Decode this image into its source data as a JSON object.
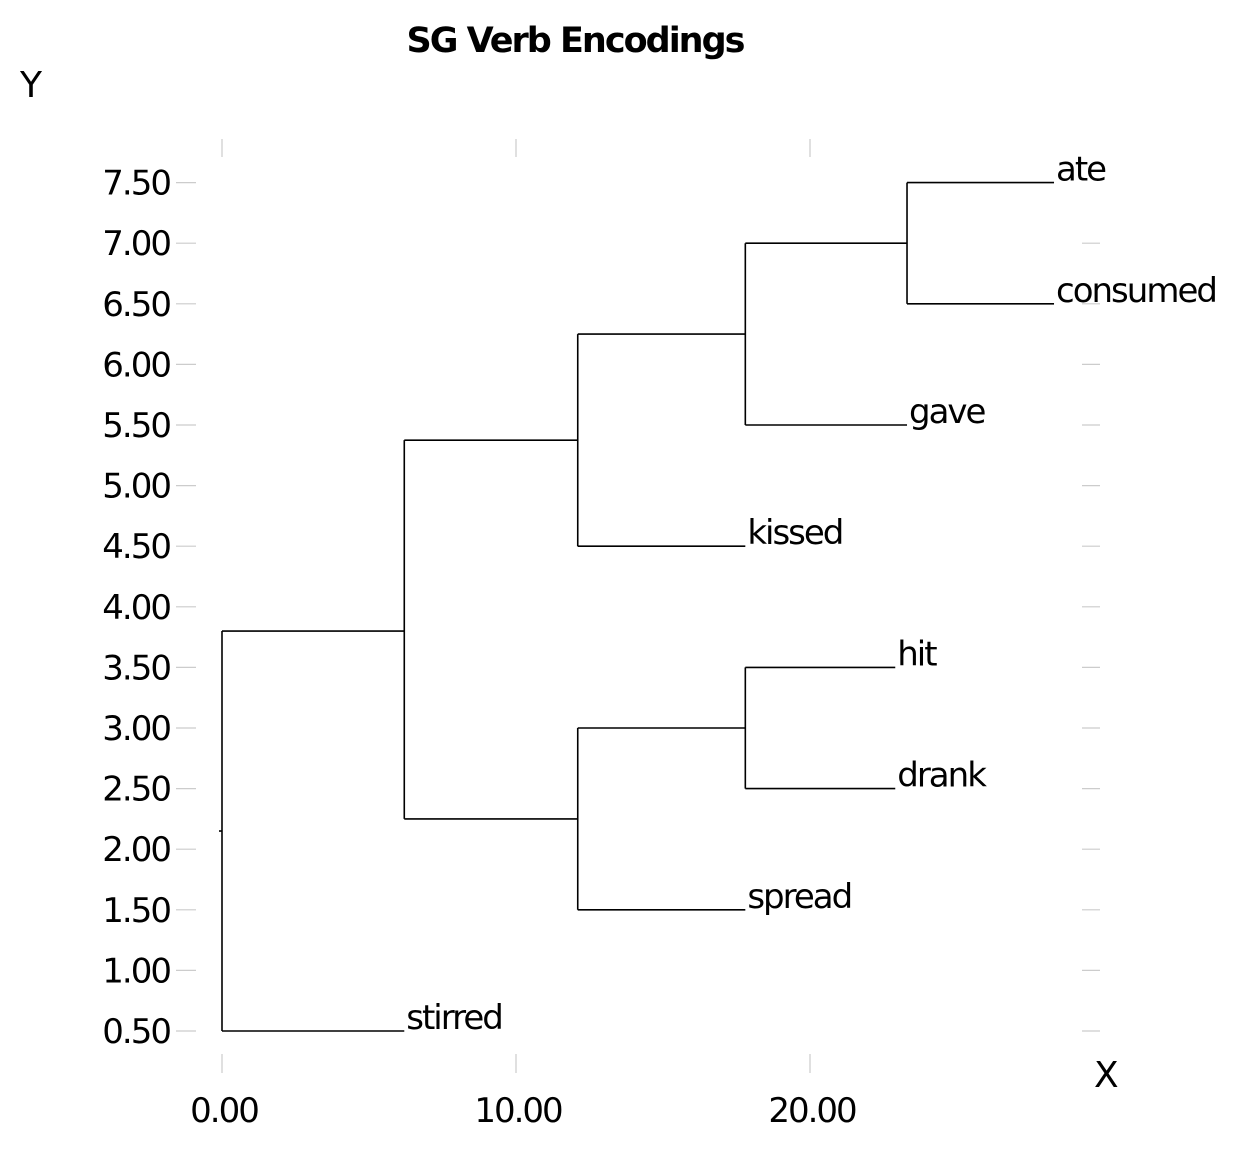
{
  "chart_data": {
    "type": "dendrogram",
    "title": "SG Verb Encodings",
    "xlabel": "X",
    "ylabel": "Y",
    "xlim": [
      0,
      29
    ],
    "ylim": [
      0.5,
      7.5
    ],
    "x_ticks": [
      {
        "value": 0,
        "label": "0.00"
      },
      {
        "value": 10,
        "label": "10.00"
      },
      {
        "value": 20,
        "label": "20.00"
      }
    ],
    "y_ticks": [
      {
        "value": 7.5,
        "label": "7.50"
      },
      {
        "value": 7.0,
        "label": "7.00"
      },
      {
        "value": 6.5,
        "label": "6.50"
      },
      {
        "value": 6.0,
        "label": "6.00"
      },
      {
        "value": 5.5,
        "label": "5.50"
      },
      {
        "value": 5.0,
        "label": "5.00"
      },
      {
        "value": 4.5,
        "label": "4.50"
      },
      {
        "value": 4.0,
        "label": "4.00"
      },
      {
        "value": 3.5,
        "label": "3.50"
      },
      {
        "value": 3.0,
        "label": "3.00"
      },
      {
        "value": 2.5,
        "label": "2.50"
      },
      {
        "value": 2.0,
        "label": "2.00"
      },
      {
        "value": 1.5,
        "label": "1.50"
      },
      {
        "value": 1.0,
        "label": "1.00"
      },
      {
        "value": 0.5,
        "label": "0.50"
      }
    ],
    "leaves": [
      {
        "label": "ate",
        "x": 28.3,
        "y": 7.5
      },
      {
        "label": "consumed",
        "x": 28.3,
        "y": 6.5
      },
      {
        "label": "gave",
        "x": 23.3,
        "y": 5.5
      },
      {
        "label": "kissed",
        "x": 17.8,
        "y": 4.5
      },
      {
        "label": "hit",
        "x": 22.9,
        "y": 3.5
      },
      {
        "label": "drank",
        "x": 22.9,
        "y": 2.5
      },
      {
        "label": "spread",
        "x": 17.8,
        "y": 1.5
      },
      {
        "label": "stirred",
        "x": 6.2,
        "y": 0.5
      }
    ],
    "links": [
      {
        "x": 23.3,
        "y": 7.0,
        "children": [
          {
            "x": 28.3,
            "y": 7.5
          },
          {
            "x": 28.3,
            "y": 6.5
          }
        ]
      },
      {
        "x": 17.8,
        "y": 6.25,
        "children": [
          {
            "x": 23.3,
            "y": 7.0
          },
          {
            "x": 23.3,
            "y": 5.5
          }
        ]
      },
      {
        "x": 12.1,
        "y": 5.375,
        "children": [
          {
            "x": 17.8,
            "y": 6.25
          },
          {
            "x": 17.8,
            "y": 4.5
          }
        ]
      },
      {
        "x": 17.8,
        "y": 3.0,
        "children": [
          {
            "x": 22.9,
            "y": 3.5
          },
          {
            "x": 22.9,
            "y": 2.5
          }
        ]
      },
      {
        "x": 12.1,
        "y": 2.25,
        "children": [
          {
            "x": 17.8,
            "y": 3.0
          },
          {
            "x": 17.8,
            "y": 1.5
          }
        ]
      },
      {
        "x": 6.2,
        "y": 3.8,
        "children": [
          {
            "x": 12.1,
            "y": 5.375
          },
          {
            "x": 12.1,
            "y": 2.25
          }
        ]
      },
      {
        "x": 0,
        "y": 2.15,
        "children": [
          {
            "x": 6.2,
            "y": 3.8
          },
          {
            "x": 6.2,
            "y": 0.5
          }
        ]
      }
    ],
    "grid": false,
    "legend": "none",
    "colors": {
      "line": "#000000",
      "tick": "#cccccc",
      "text": "#000000"
    }
  }
}
